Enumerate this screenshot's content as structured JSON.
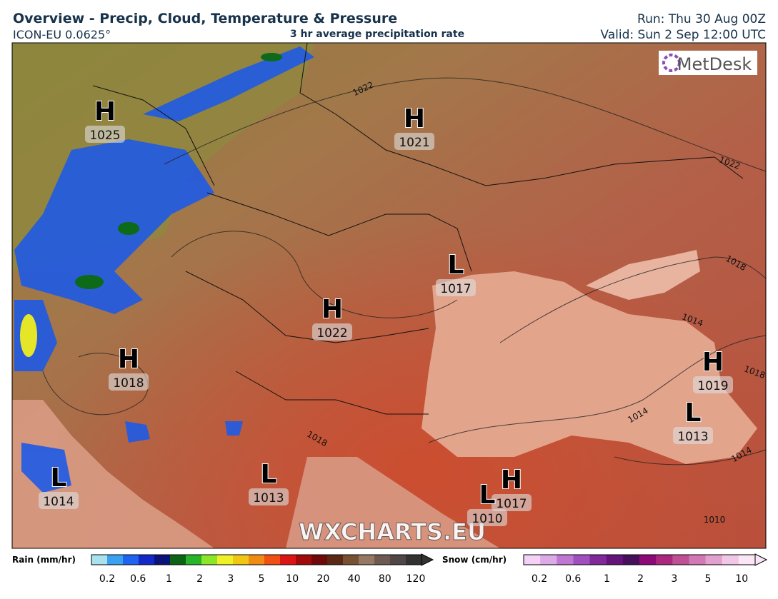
{
  "header": {
    "title": "Overview - Precip, Cloud, Temperature & Pressure",
    "model": "ICON-EU 0.0625°",
    "subtitle": "3 hr average precipitation rate",
    "run": "Run: Thu 30 Aug 00Z",
    "valid": "Valid: Sun 2 Sep 12:00 UTC"
  },
  "map": {
    "logo": "MetDesk",
    "watermark": "WXCHARTS.EU",
    "centers": [
      {
        "type": "H",
        "value": "1025"
      },
      {
        "type": "H",
        "value": "1021"
      },
      {
        "type": "L",
        "value": "1017"
      },
      {
        "type": "H",
        "value": "1022"
      },
      {
        "type": "H",
        "value": "1018"
      },
      {
        "type": "H",
        "value": "1019"
      },
      {
        "type": "L",
        "value": "1013"
      },
      {
        "type": "L",
        "value": "1014"
      },
      {
        "type": "L",
        "value": "1013"
      },
      {
        "type": "H",
        "value": "1017"
      },
      {
        "type": "L",
        "value": "1010"
      }
    ],
    "isobar_labels": [
      "1022",
      "1022",
      "1018",
      "1014",
      "1014",
      "1014",
      "1018",
      "1010",
      "1018"
    ]
  },
  "legend": {
    "rain": {
      "label": "Rain (mm/hr)",
      "ticks": [
        "0.2",
        "0.6",
        "1",
        "2",
        "3",
        "5",
        "10",
        "20",
        "40",
        "80",
        "120"
      ],
      "colors": [
        "#a9e2ee",
        "#3aa0f0",
        "#1e64f0",
        "#1428c8",
        "#0a1478",
        "#0a6414",
        "#28b428",
        "#8ce628",
        "#f0f028",
        "#f0c814",
        "#f08c14",
        "#f05014",
        "#dc1414",
        "#a00a0a",
        "#6e0a0a",
        "#5a2814",
        "#785032",
        "#967864",
        "#6e5a50",
        "#504646",
        "#323232"
      ]
    },
    "snow": {
      "label": "Snow (cm/hr)",
      "ticks": [
        "0.2",
        "0.6",
        "1",
        "2",
        "3",
        "5",
        "10"
      ],
      "colors": [
        "#f5d2f5",
        "#dcaae6",
        "#be78d2",
        "#a050be",
        "#82289a",
        "#64147a",
        "#46105a",
        "#8c0a78",
        "#aa287e",
        "#c05096",
        "#d278b4",
        "#e1a0cd",
        "#f0c8e6",
        "#fae6f5"
      ]
    }
  }
}
